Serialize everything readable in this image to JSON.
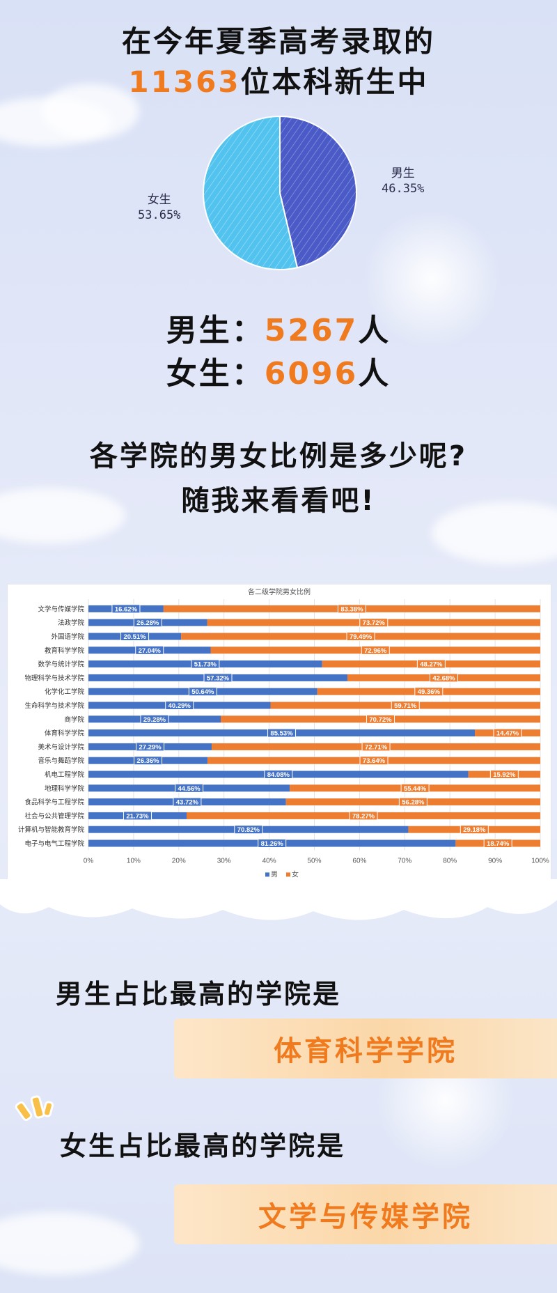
{
  "header": {
    "line1": "在今年夏季高考录取的",
    "line2_number": "11363",
    "line2_suffix": "位本科新生中"
  },
  "pie": {
    "male_label": "男生",
    "male_pct": "46.35%",
    "female_label": "女生",
    "female_pct": "53.65%",
    "male_value": 46.35,
    "female_value": 53.65,
    "male_color": "#4a5bc8",
    "female_color": "#52c3ee"
  },
  "counts": {
    "male_label": "男生：",
    "male_number": "5267",
    "male_unit": "人",
    "female_label": "女生：",
    "female_number": "6096",
    "female_unit": "人"
  },
  "question": {
    "line1": "各学院的男女比例是多少呢?",
    "line2": "随我来看看吧!"
  },
  "chart_data": {
    "type": "bar",
    "orientation": "horizontal-stacked-100",
    "title": "各二级学院男女比例",
    "categories": [
      "文学与传媒学院",
      "法政学院",
      "外国语学院",
      "教育科学学院",
      "数学与统计学院",
      "物理科学与技术学院",
      "化学化工学院",
      "生命科学与技术学院",
      "商学院",
      "体育科学学院",
      "美术与设计学院",
      "音乐与舞蹈学院",
      "机电工程学院",
      "地理科学学院",
      "食品科学与工程学院",
      "社会与公共管理学院",
      "计算机与智能教育学院",
      "电子与电气工程学院"
    ],
    "series": [
      {
        "name": "男",
        "color": "#4472c4",
        "values": [
          16.62,
          26.28,
          20.51,
          27.04,
          51.73,
          57.32,
          50.64,
          40.29,
          29.28,
          85.53,
          27.29,
          26.36,
          84.08,
          44.56,
          43.72,
          21.73,
          70.82,
          81.26
        ]
      },
      {
        "name": "女",
        "color": "#ed7d31",
        "values": [
          83.38,
          73.72,
          79.49,
          72.96,
          48.27,
          42.68,
          49.36,
          59.71,
          70.72,
          14.47,
          72.71,
          73.64,
          15.92,
          55.44,
          56.28,
          78.27,
          29.18,
          18.74
        ]
      }
    ],
    "x_ticks": [
      "0%",
      "10%",
      "20%",
      "30%",
      "40%",
      "50%",
      "60%",
      "70%",
      "80%",
      "90%",
      "100%"
    ],
    "xlim": [
      0,
      100
    ],
    "legend_position": "bottom",
    "grid": true
  },
  "conclusion": {
    "male_title": "男生占比最高的学院是",
    "male_answer": "体育科学学院",
    "female_title": "女生占比最高的学院是",
    "female_answer": "文学与传媒学院"
  }
}
